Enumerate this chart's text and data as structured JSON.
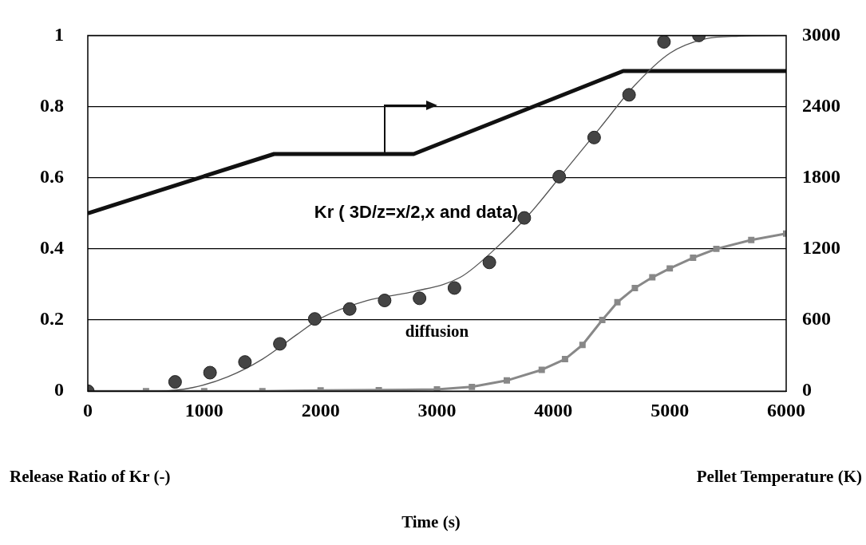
{
  "chart_data": {
    "type": "line",
    "xlim": [
      0,
      6000
    ],
    "xticks": [
      0,
      1000,
      2000,
      3000,
      4000,
      5000,
      6000
    ],
    "ylim": [
      0,
      1
    ],
    "yticks": [
      0,
      0.2,
      0.4,
      0.6,
      0.8,
      1
    ],
    "y2lim": [
      0,
      3000
    ],
    "y2ticks": [
      0,
      600,
      1200,
      1800,
      2400,
      3000
    ],
    "grid": "y",
    "legend": false,
    "annotations": [
      "Kr ( 3D/z=x/2,x and data)",
      "diffusion",
      "Release Ratio of Kr (-)",
      "Pellet Temperature (K)",
      "Time (s)"
    ],
    "series": [
      {
        "type": "scatter",
        "marker": "circle",
        "color": "#444444",
        "x": [
          0,
          750,
          1050,
          1350,
          1650,
          1950,
          2250,
          2550,
          2850,
          3150,
          3450,
          3750,
          4050,
          4350,
          4650,
          4950,
          5250
        ],
        "values": [
          0,
          0.026,
          0.052,
          0.082,
          0.133,
          0.203,
          0.231,
          0.255,
          0.261,
          0.29,
          0.362,
          0.487,
          0.603,
          0.713,
          0.833,
          0.982,
          1.0
        ]
      },
      {
        "type": "line",
        "marker": "none",
        "color": "#555555",
        "x": [
          0,
          600,
          900,
          1200,
          1500,
          1800,
          2000,
          2400,
          2800,
          3200,
          3500,
          3800,
          4100,
          4400,
          4700,
          5000,
          5300,
          5600,
          6000
        ],
        "values": [
          0,
          0,
          0.01,
          0.04,
          0.09,
          0.16,
          0.205,
          0.255,
          0.28,
          0.32,
          0.4,
          0.5,
          0.62,
          0.74,
          0.86,
          0.95,
          0.99,
          0.998,
          1.0
        ]
      },
      {
        "type": "line",
        "marker": "square",
        "color": "#888888",
        "x": [
          0,
          500,
          1000,
          1500,
          2000,
          2500,
          3000,
          3300,
          3600,
          3900,
          4100,
          4250,
          4420,
          4550,
          4700,
          4850,
          5000,
          5200,
          5400,
          5700,
          6000
        ],
        "values": [
          0,
          0,
          0,
          0,
          0.002,
          0.003,
          0.005,
          0.012,
          0.03,
          0.06,
          0.09,
          0.13,
          0.2,
          0.25,
          0.29,
          0.32,
          0.345,
          0.375,
          0.4,
          0.425,
          0.443
        ]
      },
      {
        "type": "line",
        "marker": "none",
        "axis": "y2",
        "color": "#111111",
        "x": [
          0,
          1600,
          2800,
          4600,
          6000
        ],
        "values": [
          1500,
          2000,
          2000,
          2700,
          2700
        ]
      }
    ]
  }
}
